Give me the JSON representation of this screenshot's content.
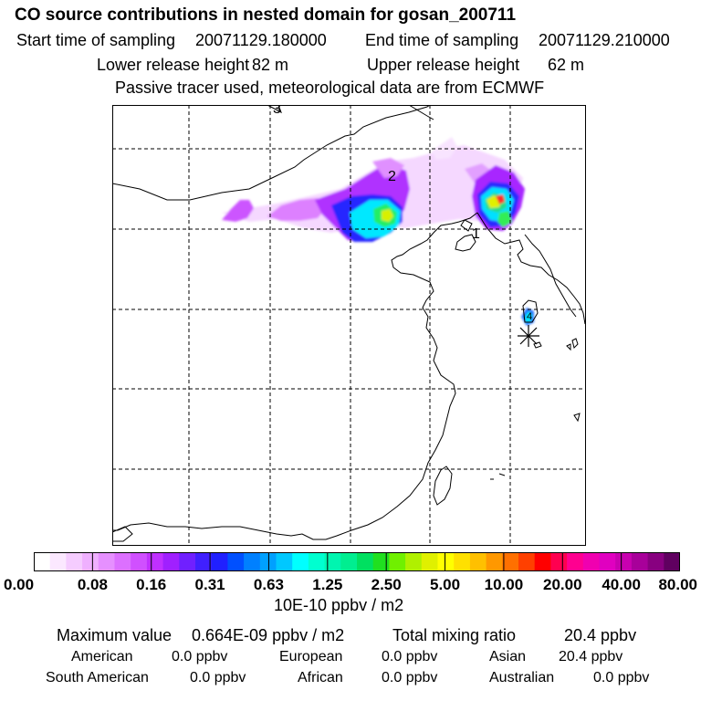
{
  "header": {
    "title": "CO  source contributions in nested domain for gosan_200711",
    "start_label": "Start time of sampling",
    "start_value": "20071129.180000",
    "end_label": "End time of sampling",
    "end_value": "20071129.210000",
    "lower_label": "Lower release height",
    "lower_value": "82 m",
    "upper_label": "Upper release height",
    "upper_value": "62 m",
    "subtitle": "Passive tracer used, meteorological data are from ECMWF"
  },
  "map": {
    "site_marker": "station-asterisk-icon",
    "labels": [
      "1",
      "2",
      "3",
      "4"
    ],
    "colors": {
      "coast": "#000000",
      "grid": "#000000",
      "background": "#ffffff"
    }
  },
  "colorbar": {
    "ticks": [
      "0.00",
      "0.08",
      "0.16",
      "0.31",
      "0.63",
      "1.25",
      "2.50",
      "5.00",
      "10.00",
      "20.00",
      "40.00",
      "80.00"
    ],
    "colors": [
      "#ffffff",
      "#fbe8ff",
      "#f5ccff",
      "#efb0ff",
      "#e690ff",
      "#dc70ff",
      "#d050ff",
      "#c030ff",
      "#a020ff",
      "#7020ff",
      "#4020ff",
      "#2020ff",
      "#0050ff",
      "#0080ff",
      "#00a0ff",
      "#00c8ff",
      "#00ffff",
      "#00ffd0",
      "#00f5b0",
      "#00ee90",
      "#00e060",
      "#20e020",
      "#70f000",
      "#b0f000",
      "#e0f000",
      "#ffff00",
      "#ffe000",
      "#ffc000",
      "#ff9800",
      "#ff7000",
      "#ff4000",
      "#ff0000",
      "#ff0050",
      "#ff0090",
      "#f000b0",
      "#e000c0",
      "#c800b0",
      "#a8009a",
      "#880080",
      "#600060"
    ],
    "unit": "10E-10 ppbv / m2"
  },
  "stats": {
    "max_label": "Maximum value",
    "max_value": "0.664E-09 ppbv / m2",
    "total_label": "Total mixing ratio",
    "total_value": "20.4 ppbv",
    "regions": [
      {
        "name": "American",
        "value": "0.0 ppbv"
      },
      {
        "name": "European",
        "value": "0.0 ppbv"
      },
      {
        "name": "Asian",
        "value": "20.4 ppbv"
      },
      {
        "name": "South American",
        "value": "0.0 ppbv"
      },
      {
        "name": "African",
        "value": "0.0 ppbv"
      },
      {
        "name": "Australian",
        "value": "0.0 ppbv"
      }
    ]
  }
}
